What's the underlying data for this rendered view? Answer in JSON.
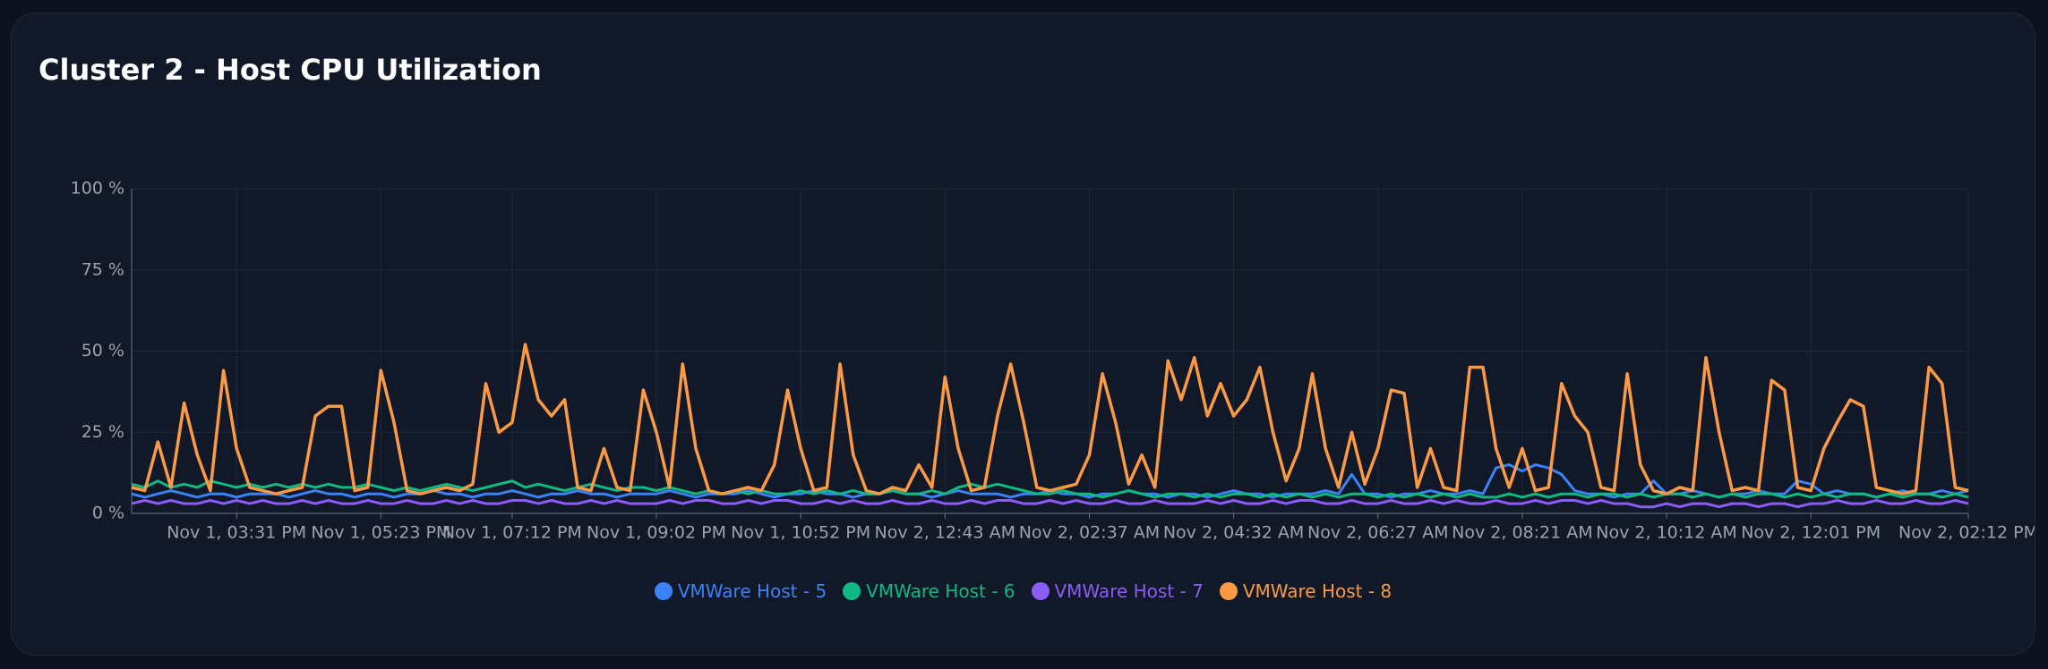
{
  "chart_data": {
    "type": "line",
    "title": "Cluster 2 - Host CPU Utilization",
    "categories": [
      null,
      null,
      null,
      null,
      null,
      null,
      null,
      null,
      "Nov 1, 03:31 PM",
      null,
      null,
      null,
      null,
      null,
      null,
      null,
      null,
      null,
      null,
      "Nov 1, 05:23 PM",
      null,
      null,
      null,
      null,
      null,
      null,
      null,
      null,
      null,
      "Nov 1, 07:12 PM",
      null,
      null,
      null,
      null,
      null,
      null,
      null,
      null,
      null,
      null,
      "Nov 1, 09:02 PM",
      null,
      null,
      null,
      null,
      null,
      null,
      null,
      null,
      null,
      null,
      "Nov 1, 10:52 PM",
      null,
      null,
      null,
      null,
      null,
      null,
      null,
      null,
      null,
      null,
      "Nov 2, 12:43 AM",
      null,
      null,
      null,
      null,
      null,
      null,
      null,
      null,
      null,
      null,
      "Nov 2, 02:37 AM",
      null,
      null,
      null,
      null,
      null,
      null,
      null,
      null,
      null,
      null,
      "Nov 2, 04:32 AM",
      null,
      null,
      null,
      null,
      null,
      null,
      null,
      null,
      null,
      null,
      "Nov 2, 06:27 AM",
      null,
      null,
      null,
      null,
      null,
      null,
      null,
      null,
      null,
      null,
      "Nov 2, 08:21 AM",
      null,
      null,
      null,
      null,
      null,
      null,
      null,
      null,
      null,
      null,
      "Nov 2, 10:12 AM",
      null,
      null,
      null,
      null,
      null,
      null,
      null,
      null,
      null,
      null,
      "Nov 2, 12:01 PM",
      null,
      null,
      null,
      null,
      null,
      null,
      null,
      null,
      null,
      null,
      null,
      "Nov 2, 02:12 PM"
    ],
    "series": [
      {
        "name": "VMWare Host - 5",
        "color": "#3b82f6",
        "values": [
          6,
          5,
          6,
          7,
          6,
          5,
          6,
          6,
          5,
          6,
          6,
          6,
          5,
          6,
          7,
          6,
          6,
          5,
          6,
          6,
          5,
          6,
          6,
          7,
          6,
          6,
          5,
          6,
          6,
          7,
          6,
          5,
          6,
          6,
          7,
          6,
          6,
          5,
          6,
          6,
          6,
          7,
          6,
          5,
          6,
          6,
          6,
          7,
          6,
          5,
          6,
          6,
          7,
          6,
          6,
          5,
          6,
          6,
          7,
          6,
          6,
          5,
          6,
          7,
          6,
          6,
          6,
          5,
          6,
          6,
          7,
          6,
          6,
          5,
          6,
          6,
          7,
          6,
          6,
          5,
          6,
          6,
          5,
          6,
          7,
          6,
          6,
          5,
          6,
          6,
          6,
          7,
          6,
          12,
          6,
          6,
          5,
          6,
          6,
          7,
          6,
          6,
          7,
          6,
          14,
          15,
          13,
          15,
          14,
          12,
          7,
          6,
          6,
          5,
          6,
          6,
          10,
          6,
          6,
          7,
          6,
          5,
          6,
          6,
          7,
          6,
          6,
          10,
          9,
          6,
          7,
          6,
          6,
          5,
          6,
          7,
          6,
          6,
          7,
          6,
          7
        ]
      },
      {
        "name": "VMWare Host - 6",
        "color": "#10b981",
        "values": [
          9,
          8,
          10,
          8,
          9,
          8,
          10,
          9,
          8,
          9,
          8,
          9,
          8,
          9,
          8,
          9,
          8,
          8,
          9,
          8,
          7,
          8,
          7,
          8,
          9,
          8,
          7,
          8,
          9,
          10,
          8,
          9,
          8,
          7,
          8,
          9,
          8,
          7,
          8,
          8,
          7,
          8,
          7,
          6,
          7,
          6,
          7,
          6,
          7,
          6,
          6,
          7,
          6,
          7,
          6,
          7,
          6,
          6,
          7,
          6,
          6,
          7,
          6,
          8,
          9,
          8,
          9,
          8,
          7,
          6,
          6,
          7,
          6,
          6,
          5,
          6,
          7,
          6,
          5,
          6,
          6,
          5,
          6,
          5,
          6,
          6,
          5,
          6,
          5,
          6,
          5,
          6,
          5,
          6,
          6,
          5,
          6,
          5,
          6,
          5,
          6,
          5,
          6,
          5,
          5,
          6,
          5,
          6,
          5,
          6,
          6,
          5,
          6,
          6,
          5,
          6,
          5,
          6,
          6,
          5,
          6,
          5,
          6,
          5,
          6,
          6,
          5,
          6,
          5,
          6,
          5,
          6,
          6,
          5,
          6,
          5,
          6,
          6,
          5,
          6,
          5
        ]
      },
      {
        "name": "VMWare Host - 7",
        "color": "#8b5cf6",
        "values": [
          3,
          4,
          3,
          4,
          3,
          3,
          4,
          3,
          4,
          3,
          4,
          3,
          3,
          4,
          3,
          4,
          3,
          3,
          4,
          3,
          3,
          4,
          3,
          3,
          4,
          3,
          4,
          3,
          3,
          4,
          4,
          3,
          4,
          3,
          3,
          4,
          3,
          4,
          3,
          3,
          3,
          4,
          3,
          4,
          4,
          3,
          3,
          4,
          3,
          4,
          4,
          3,
          3,
          4,
          3,
          4,
          3,
          3,
          4,
          3,
          3,
          4,
          3,
          3,
          4,
          3,
          4,
          4,
          3,
          3,
          4,
          3,
          4,
          3,
          3,
          4,
          3,
          3,
          4,
          3,
          3,
          3,
          4,
          3,
          4,
          3,
          3,
          4,
          3,
          4,
          4,
          3,
          3,
          4,
          3,
          3,
          4,
          3,
          3,
          4,
          3,
          4,
          3,
          3,
          4,
          3,
          3,
          4,
          3,
          4,
          4,
          3,
          4,
          3,
          3,
          2,
          2,
          3,
          2,
          3,
          3,
          2,
          3,
          3,
          2,
          3,
          3,
          2,
          3,
          3,
          4,
          3,
          3,
          4,
          3,
          3,
          4,
          3,
          3,
          4,
          3
        ]
      },
      {
        "name": "VMWare Host - 8",
        "color": "#fb9a45",
        "values": [
          8,
          7,
          22,
          8,
          34,
          18,
          7,
          44,
          20,
          8,
          7,
          6,
          7,
          8,
          30,
          33,
          33,
          7,
          8,
          44,
          28,
          7,
          6,
          7,
          8,
          7,
          9,
          40,
          25,
          28,
          52,
          35,
          30,
          35,
          8,
          7,
          20,
          8,
          7,
          38,
          25,
          8,
          46,
          20,
          7,
          6,
          7,
          8,
          7,
          15,
          38,
          20,
          7,
          8,
          46,
          18,
          7,
          6,
          8,
          7,
          15,
          8,
          42,
          20,
          7,
          8,
          30,
          46,
          28,
          8,
          7,
          8,
          9,
          18,
          43,
          28,
          9,
          18,
          8,
          47,
          35,
          48,
          30,
          40,
          30,
          35,
          45,
          25,
          10,
          20,
          43,
          20,
          8,
          25,
          9,
          20,
          38,
          37,
          8,
          20,
          8,
          7,
          45,
          45,
          20,
          8,
          20,
          7,
          8,
          40,
          30,
          25,
          8,
          7,
          43,
          15,
          7,
          6,
          8,
          7,
          48,
          25,
          7,
          8,
          7,
          41,
          38,
          8,
          7,
          20,
          28,
          35,
          33,
          8,
          7,
          6,
          7,
          45,
          40,
          8,
          7
        ]
      }
    ],
    "ylim": [
      0,
      100
    ],
    "yticks": [
      {
        "value": 0,
        "label": "0 %"
      },
      {
        "value": 25,
        "label": "25 %"
      },
      {
        "value": 50,
        "label": "50 %"
      },
      {
        "value": 75,
        "label": "75 %"
      },
      {
        "value": 100,
        "label": "100 %"
      }
    ],
    "grid": true,
    "legend": "bottom"
  }
}
